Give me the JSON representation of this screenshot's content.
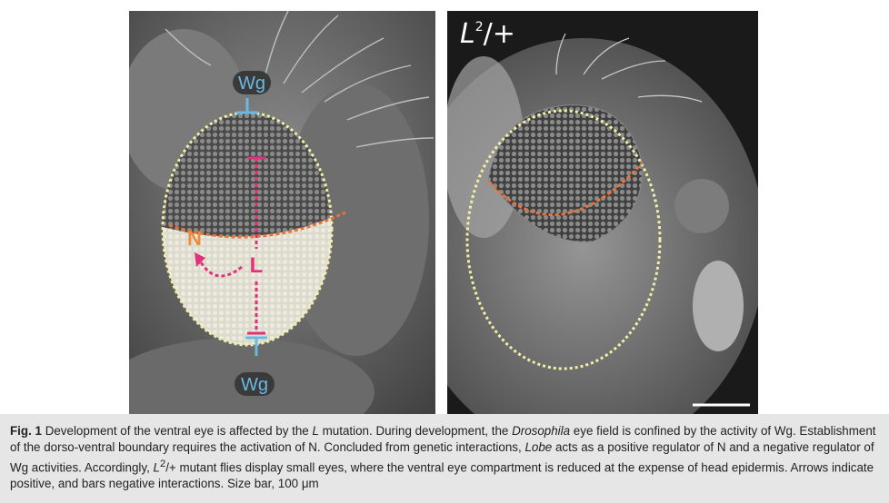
{
  "figure": {
    "left_panel": {
      "labels": {
        "wg_top": "Wg",
        "wg_bottom": "Wg",
        "n": "N",
        "l": "L"
      }
    },
    "right_panel": {
      "genotype_base": "L",
      "genotype_sup": "2",
      "genotype_suffix": "/+"
    },
    "colors": {
      "wg": "#6ab9e4",
      "lobe": "#e0317a",
      "n": "#f08a3c",
      "outline": "#f3efa6",
      "boundary": "#e8743c"
    }
  },
  "caption": {
    "fig_label": "Fig. 1",
    "part1": " Development of the ventral eye is affected by the ",
    "italic1": "L",
    "part2": " mutation. During development, the ",
    "italic2": "Drosophila",
    "part3": " eye field is confined by the activity of Wg. Establishment of the dorso-ventral boundary requires the activation of N. Concluded from genetic interactions, ",
    "italic3": "Lobe",
    "part4": " acts as a positive regulator of N and a negative regulator of Wg activities. Accordingly, ",
    "italic4": "L",
    "sup4": "2",
    "part5": "/+ mutant flies display small eyes, where the ventral eye compartment is reduced at the expense of head epidermis. Arrows indicate positive, and bars negative interactions. Size bar, 100 μm"
  }
}
